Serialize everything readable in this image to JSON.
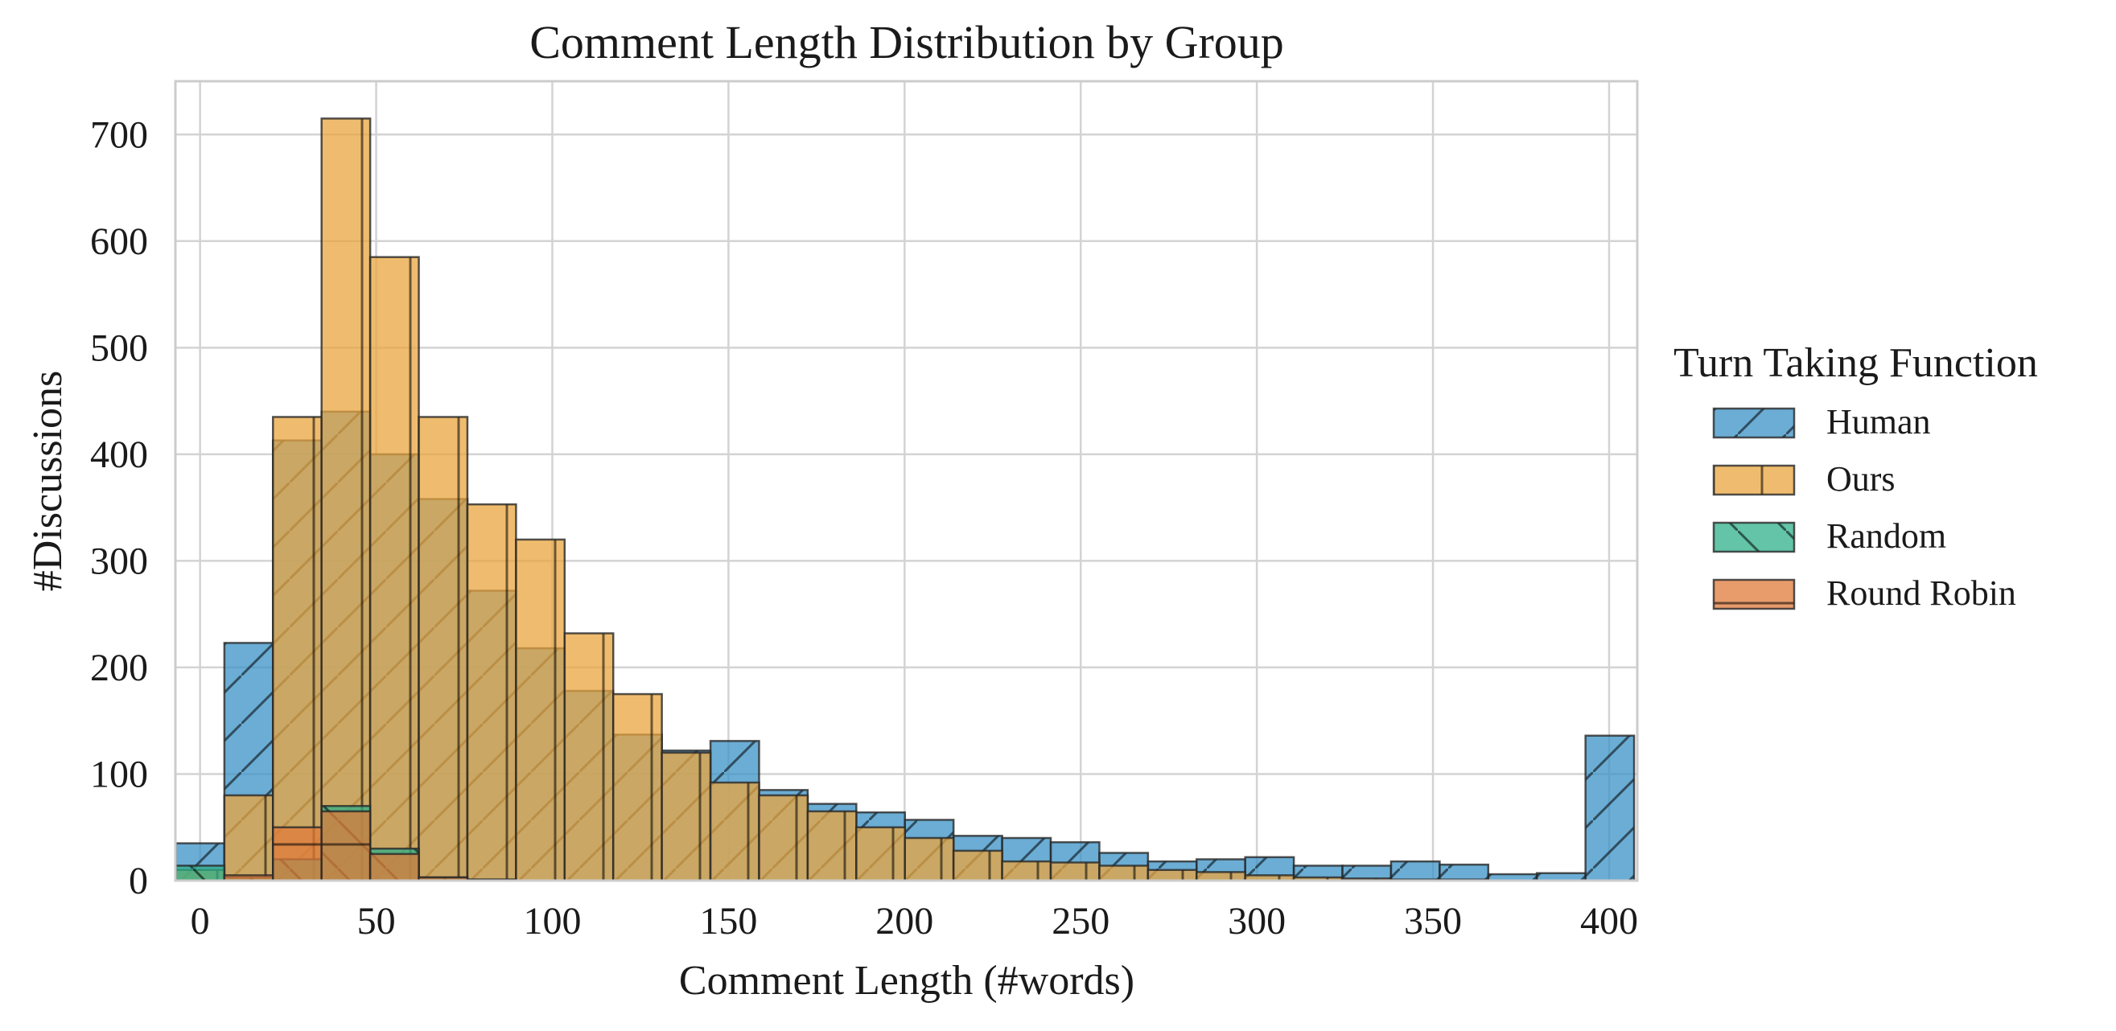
{
  "chart_data": {
    "type": "bar",
    "title": "Comment Length Distribution by Group",
    "xlabel": "Comment Length (#words)",
    "ylabel": "#Discussions",
    "xlim": [
      -7,
      408
    ],
    "ylim": [
      0,
      750
    ],
    "xticks": [
      0,
      50,
      100,
      150,
      200,
      250,
      300,
      350,
      400
    ],
    "yticks": [
      0,
      100,
      200,
      300,
      400,
      500,
      600,
      700
    ],
    "grid": true,
    "bin_width": 13.8,
    "x": [
      0,
      13.8,
      27.6,
      41.4,
      55.2,
      69.0,
      82.8,
      96.6,
      110.4,
      124.2,
      138.0,
      151.8,
      165.6,
      179.4,
      193.2,
      207.0,
      220.8,
      234.6,
      248.4,
      262.2,
      276.0,
      289.8,
      303.6,
      317.4,
      331.2,
      345.0,
      358.8,
      372.6,
      386.4,
      400.2
    ],
    "legend": {
      "title": "Turn Taking Function",
      "placement": "center-right outside"
    },
    "series": [
      {
        "name": "Human",
        "color": "#3a92c6",
        "hatch": "/",
        "values": [
          35,
          223,
          413,
          440,
          400,
          358,
          272,
          218,
          178,
          137,
          122,
          131,
          85,
          72,
          64,
          57,
          42,
          40,
          36,
          26,
          18,
          20,
          22,
          14,
          14,
          18,
          15,
          6,
          7,
          136
        ]
      },
      {
        "name": "Ours",
        "color": "#e9a53f",
        "hatch": "|",
        "values": [
          10,
          80,
          435,
          715,
          585,
          435,
          353,
          320,
          232,
          175,
          120,
          92,
          80,
          65,
          50,
          40,
          28,
          18,
          17,
          14,
          10,
          8,
          5,
          3,
          2,
          1,
          1,
          0,
          0,
          0
        ]
      },
      {
        "name": "Random",
        "color": "#2fb08a",
        "hatch": "\\",
        "values": [
          14,
          3,
          20,
          70,
          30,
          3,
          1,
          0,
          0,
          0,
          0,
          0,
          0,
          0,
          0,
          0,
          0,
          0,
          0,
          0,
          0,
          0,
          0,
          0,
          0,
          0,
          0,
          0,
          0,
          0
        ]
      },
      {
        "name": "Round Robin",
        "color": "#e07b39",
        "hatch": "-",
        "values": [
          0,
          5,
          50,
          65,
          25,
          3,
          1,
          0,
          0,
          0,
          0,
          0,
          0,
          0,
          0,
          0,
          0,
          0,
          0,
          0,
          0,
          0,
          0,
          0,
          0,
          0,
          0,
          0,
          0,
          0
        ]
      }
    ]
  }
}
